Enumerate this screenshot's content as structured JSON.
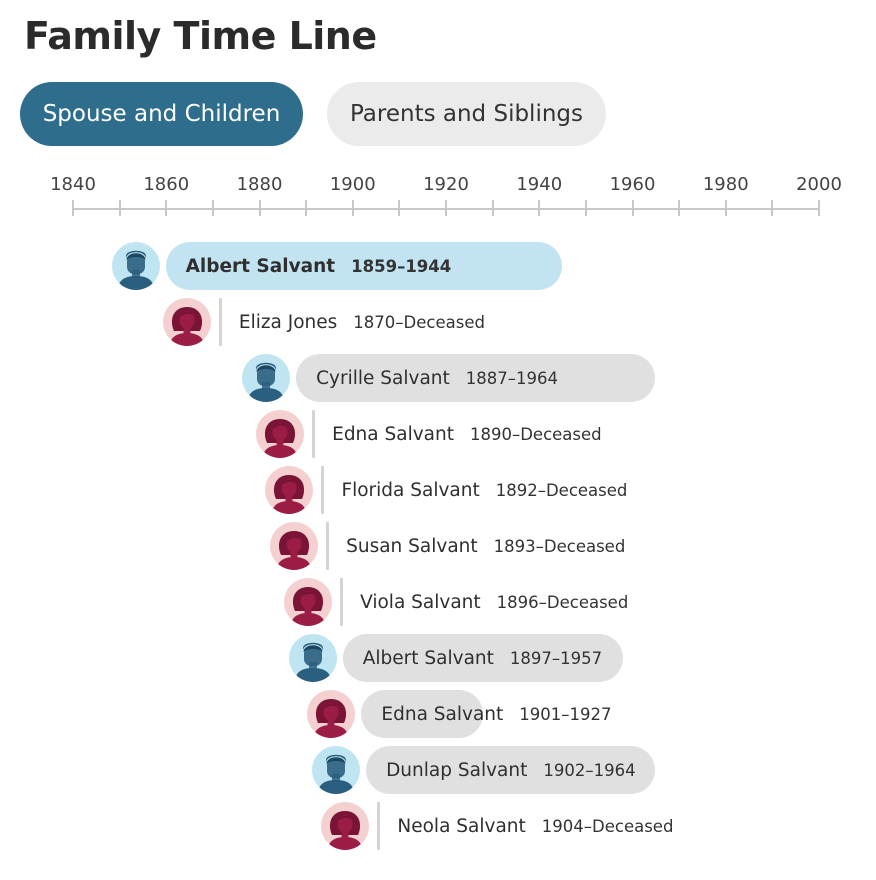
{
  "title": "Family Time Line",
  "tabs": [
    {
      "label": "Spouse and Children",
      "active": true
    },
    {
      "label": "Parents and Siblings",
      "active": false
    }
  ],
  "axis": {
    "start": 1840,
    "end": 2000,
    "labels": [
      "1840",
      "1860",
      "1880",
      "1900",
      "1920",
      "1940",
      "1960",
      "1980",
      "2000"
    ]
  },
  "colors": {
    "tab_active": "#2e6e8c",
    "tab_inactive": "#ebebeb",
    "bar_primary": "#c2e4f2",
    "bar_secondary": "#e0e0e0",
    "male_avatar_bg": "#bfe5f2",
    "female_avatar_bg": "#f5d0d0",
    "male_figure": "#2a5f80",
    "female_figure": "#9b1d45"
  },
  "people": [
    {
      "name": "Albert Salvant",
      "dates": "1859–1944",
      "gender": "male",
      "birth": 1859,
      "death": 1944,
      "primary": true
    },
    {
      "name": "Eliza Jones",
      "dates": "1870–Deceased",
      "gender": "female",
      "birth": 1870,
      "death": null,
      "primary": false
    },
    {
      "name": "Cyrille Salvant",
      "dates": "1887–1964",
      "gender": "male",
      "birth": 1887,
      "death": 1964,
      "primary": false
    },
    {
      "name": "Edna Salvant",
      "dates": "1890–Deceased",
      "gender": "female",
      "birth": 1890,
      "death": null,
      "primary": false
    },
    {
      "name": "Florida Salvant",
      "dates": "1892–Deceased",
      "gender": "female",
      "birth": 1892,
      "death": null,
      "primary": false
    },
    {
      "name": "Susan Salvant",
      "dates": "1893–Deceased",
      "gender": "female",
      "birth": 1893,
      "death": null,
      "primary": false
    },
    {
      "name": "Viola Salvant",
      "dates": "1896–Deceased",
      "gender": "female",
      "birth": 1896,
      "death": null,
      "primary": false
    },
    {
      "name": "Albert Salvant",
      "dates": "1897–1957",
      "gender": "male",
      "birth": 1897,
      "death": 1957,
      "primary": false
    },
    {
      "name": "Edna Salvant",
      "dates": "1901–1927",
      "gender": "female",
      "birth": 1901,
      "death": 1927,
      "primary": false
    },
    {
      "name": "Dunlap Salvant",
      "dates": "1902–1964",
      "gender": "male",
      "birth": 1902,
      "death": 1964,
      "primary": false
    },
    {
      "name": "Neola Salvant",
      "dates": "1904–Deceased",
      "gender": "female",
      "birth": 1904,
      "death": null,
      "primary": false
    }
  ]
}
